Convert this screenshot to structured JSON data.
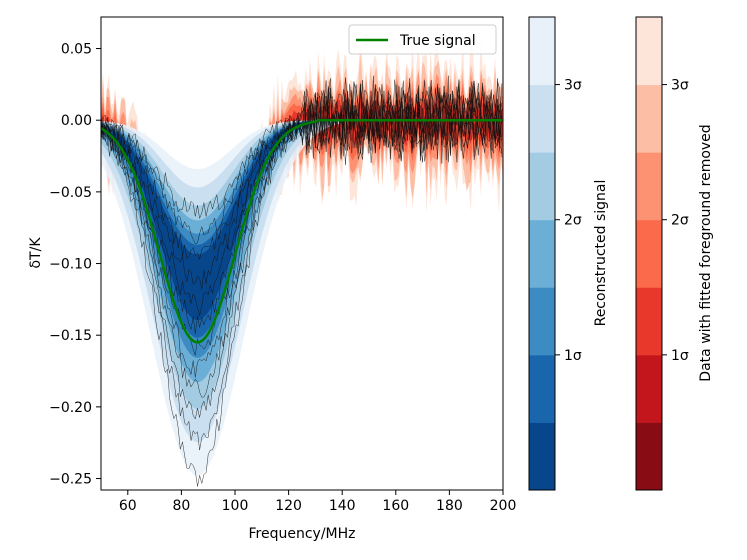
{
  "chart_data": {
    "type": "line",
    "title": "",
    "xlabel": "Frequency/MHz",
    "ylabel": "δT/K",
    "xlim": [
      50,
      200
    ],
    "ylim": [
      -0.258,
      0.072
    ],
    "xticks": [
      "60",
      "80",
      "100",
      "120",
      "140",
      "160",
      "180",
      "200"
    ],
    "yticks": [
      "0.05",
      "0.00",
      "−0.05",
      "−0.10",
      "−0.15",
      "−0.20",
      "−0.25"
    ],
    "grid": false,
    "legend": {
      "location": "upper-right",
      "entries": [
        "True signal"
      ]
    },
    "series": [
      {
        "name": "True signal",
        "color": "#008000",
        "x": [
          50,
          55,
          60,
          65,
          70,
          75,
          80,
          85,
          90,
          95,
          100,
          105,
          110,
          115,
          120,
          125,
          130,
          140,
          160,
          180,
          200
        ],
        "y": [
          -0.012,
          -0.025,
          -0.045,
          -0.07,
          -0.1,
          -0.128,
          -0.148,
          -0.155,
          -0.145,
          -0.12,
          -0.088,
          -0.057,
          -0.03,
          -0.012,
          -0.003,
          -0.0005,
          0.0,
          0.0,
          0.0,
          0.0,
          0.0
        ]
      }
    ],
    "reconstructed_signal_band": {
      "center_frequency": 86,
      "center_depth": -0.155,
      "width_mhz": 14,
      "sigma_bands": [
        {
          "level": "1σ",
          "half_depth_range": [
            -0.195,
            -0.118
          ]
        },
        {
          "level": "2σ",
          "half_depth_range": [
            -0.225,
            -0.092
          ]
        },
        {
          "level": "3σ",
          "half_depth_range": [
            -0.245,
            -0.07
          ]
        }
      ]
    },
    "colorbars": [
      {
        "label": "Reconstructed signal",
        "colormap": "Blues",
        "ticks": [
          "1σ",
          "2σ",
          "3σ"
        ],
        "colors": [
          "#08468b",
          "#1a66ad",
          "#3d8bc3",
          "#6baed6",
          "#a3cce3",
          "#cadff0",
          "#e8f1fa"
        ]
      },
      {
        "label": "Data with fitted foreground removed",
        "colormap": "Reds",
        "ticks": [
          "1σ",
          "2σ",
          "3σ"
        ],
        "colors": [
          "#870c14",
          "#c3161c",
          "#e8382c",
          "#fb6a4a",
          "#fc9272",
          "#fdbea6",
          "#fee5d9"
        ]
      }
    ]
  }
}
